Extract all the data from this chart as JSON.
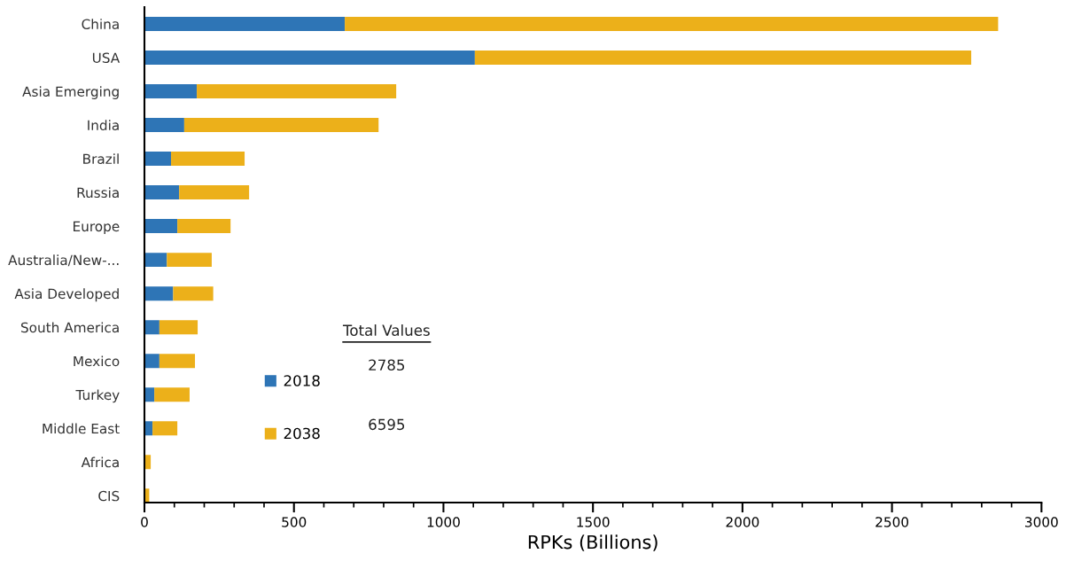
{
  "chart_data": {
    "type": "bar",
    "orientation": "horizontal",
    "stacked": true,
    "categories": [
      "China",
      "USA",
      "Asia Emerging",
      "India",
      "Brazil",
      "Russia",
      "Europe",
      "Australia/New-...",
      "Asia Developed",
      "South America",
      "Mexico",
      "Turkey",
      "Middle East",
      "Africa",
      "CIS"
    ],
    "series": [
      {
        "name": "2018",
        "color": "#2e75b6",
        "values": [
          670,
          1105,
          175,
          133,
          89,
          116,
          110,
          75,
          96,
          50,
          50,
          33,
          27,
          null,
          null
        ]
      },
      {
        "name": "2038",
        "color": "#ecb01a",
        "values": [
          2185,
          1660,
          667,
          650,
          246,
          234,
          178,
          150,
          134,
          128,
          119,
          118,
          83,
          21,
          16
        ]
      }
    ],
    "xlabel": "RPKs (Billions)",
    "xlim": [
      0,
      3000
    ],
    "xticks": [
      0,
      500,
      1000,
      1500,
      2000,
      2500,
      3000
    ],
    "legend": "bottom left",
    "grid": false,
    "annotations": [
      "Total Values",
      "2785",
      "6595"
    ]
  }
}
